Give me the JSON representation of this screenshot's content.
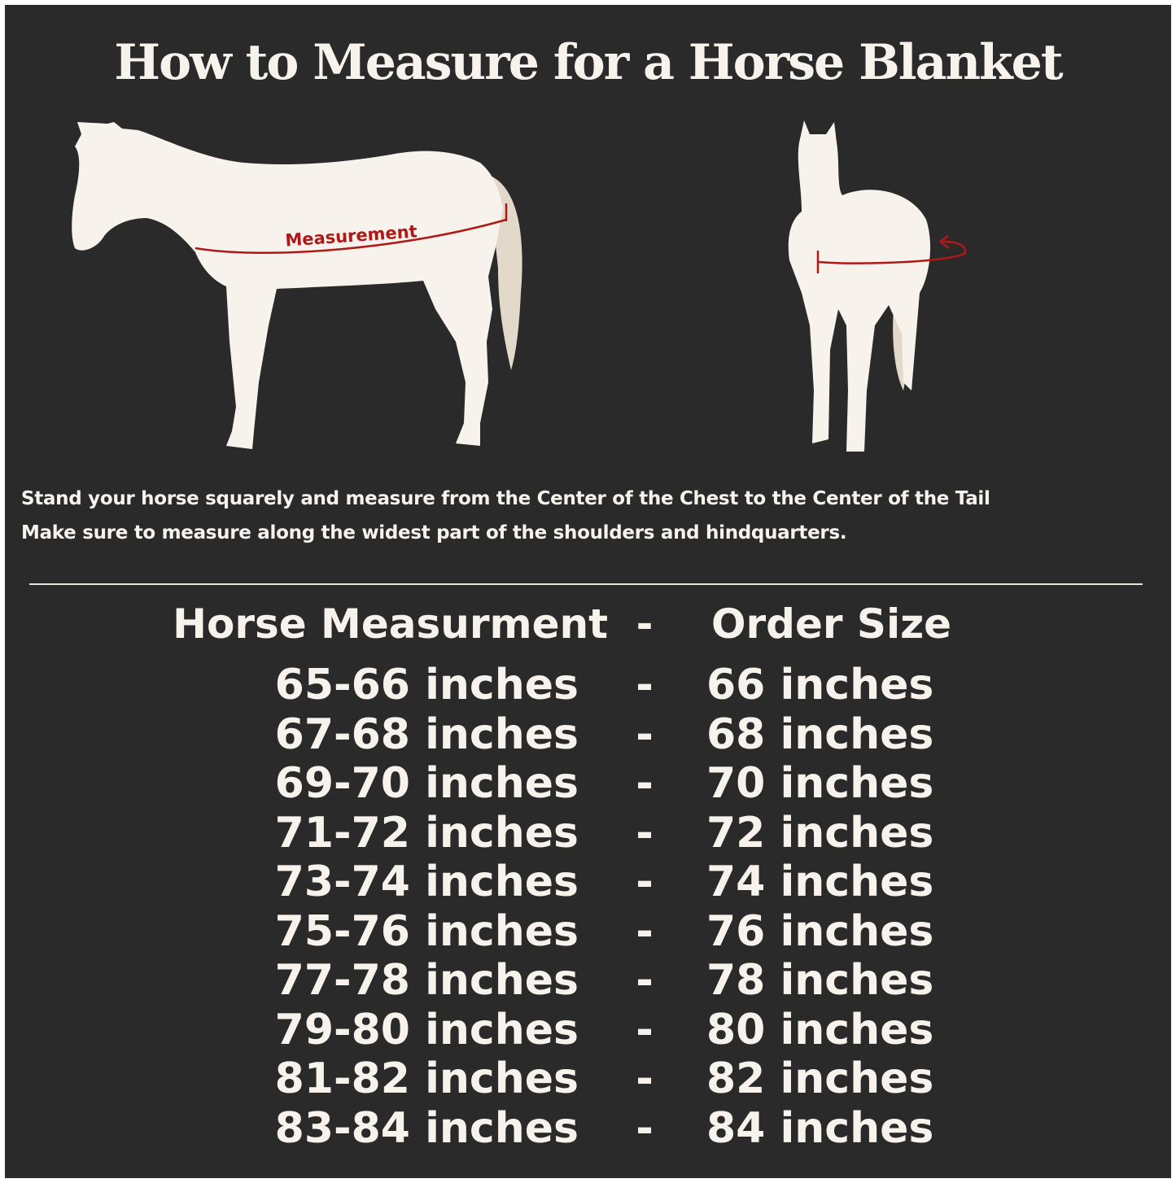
{
  "title": "How to Measure for a Horse Blanket",
  "diagram": {
    "side_view_label": "Measurement",
    "colors": {
      "background": "#2b2a2a",
      "horse": "#f7f3ec",
      "tail": "#e3d9cb",
      "measure_line": "#b01818"
    }
  },
  "instructions": [
    "Stand your horse squarely and measure from the Center of the Chest to the Center of the Tail",
    "Make sure to measure along the widest part of the shoulders and hindquarters."
  ],
  "table": {
    "headers": {
      "measurement": "Horse Measurment",
      "separator": "-",
      "size": "Order Size"
    },
    "rows": [
      {
        "measurement": "65-66 inches",
        "separator": "-",
        "size": "66 inches"
      },
      {
        "measurement": "67-68 inches",
        "separator": "-",
        "size": "68 inches"
      },
      {
        "measurement": "69-70 inches",
        "separator": "-",
        "size": "70 inches"
      },
      {
        "measurement": "71-72 inches",
        "separator": "-",
        "size": "72 inches"
      },
      {
        "measurement": "73-74 inches",
        "separator": "-",
        "size": "74 inches"
      },
      {
        "measurement": "75-76 inches",
        "separator": "-",
        "size": "76 inches"
      },
      {
        "measurement": "77-78 inches",
        "separator": "-",
        "size": "78 inches"
      },
      {
        "measurement": "79-80 inches",
        "separator": "-",
        "size": "80 inches"
      },
      {
        "measurement": "81-82 inches",
        "separator": "-",
        "size": "82 inches"
      },
      {
        "measurement": "83-84 inches",
        "separator": "-",
        "size": "84 inches"
      }
    ]
  }
}
